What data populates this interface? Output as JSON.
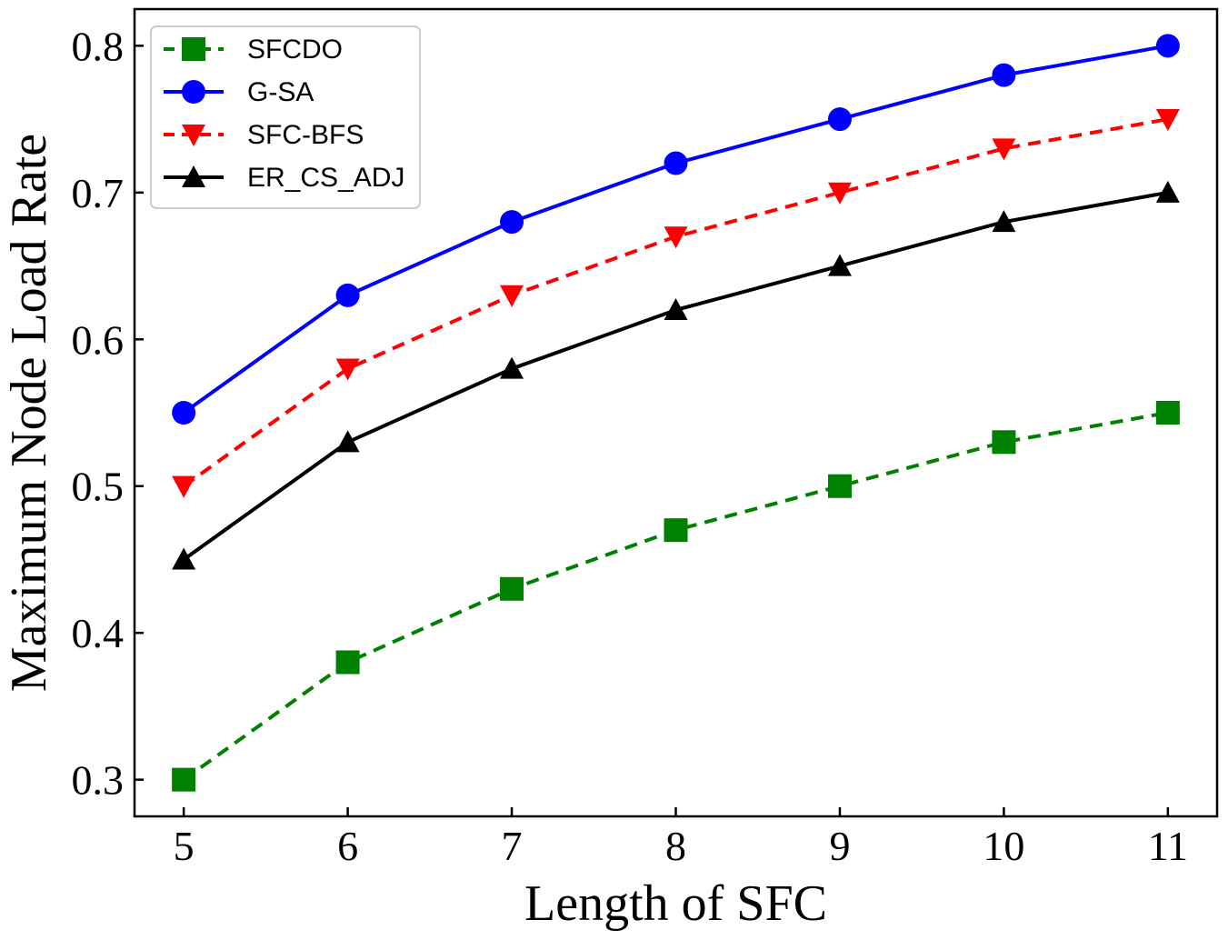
{
  "chart_data": {
    "type": "line",
    "title": "",
    "xlabel": "Length of SFC",
    "ylabel": "Maximum Node Load Rate",
    "x": [
      5,
      6,
      7,
      8,
      9,
      10,
      11
    ],
    "x_tick_labels": [
      "5",
      "6",
      "7",
      "8",
      "9",
      "10",
      "11"
    ],
    "y_ticks": [
      0.3,
      0.4,
      0.5,
      0.6,
      0.7,
      0.8
    ],
    "y_tick_labels": [
      "0.3",
      "0.4",
      "0.5",
      "0.6",
      "0.7",
      "0.8"
    ],
    "xlim": [
      4.7,
      11.3
    ],
    "ylim": [
      0.275,
      0.825
    ],
    "grid": false,
    "legend_position": "top-left",
    "series": [
      {
        "name": "SFCDO",
        "color": "#008000",
        "line_style": "dashed",
        "marker": "square",
        "values": [
          0.3,
          0.38,
          0.43,
          0.47,
          0.5,
          0.53,
          0.55
        ]
      },
      {
        "name": "G-SA",
        "color": "#0000ff",
        "line_style": "solid",
        "marker": "circle",
        "values": [
          0.55,
          0.63,
          0.68,
          0.72,
          0.75,
          0.78,
          0.8
        ]
      },
      {
        "name": "SFC-BFS",
        "color": "#ff0000",
        "line_style": "dashed",
        "marker": "triangle-down",
        "values": [
          0.5,
          0.58,
          0.63,
          0.67,
          0.7,
          0.73,
          0.75
        ]
      },
      {
        "name": "ER_CS_ADJ",
        "color": "#000000",
        "line_style": "solid",
        "marker": "triangle-up",
        "values": [
          0.45,
          0.53,
          0.58,
          0.62,
          0.65,
          0.68,
          0.7
        ]
      }
    ]
  }
}
